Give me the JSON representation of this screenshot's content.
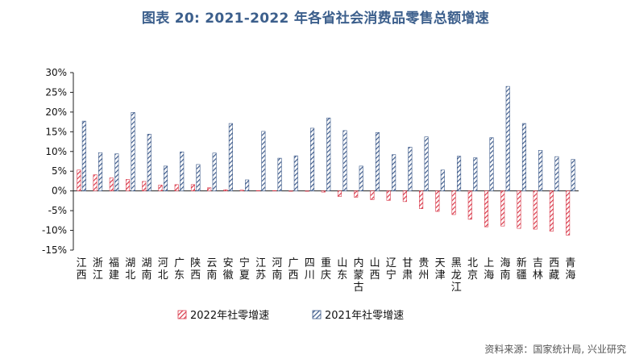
{
  "title": "图表 20: 2021-2022 年各省社会消费品零售总额增速",
  "source": "资料来源：国家统计局, 兴业研究",
  "colors": {
    "series_2022": "#d9394a",
    "series_2021": "#3d5a8a",
    "title": "#3c5f8c"
  },
  "chart_data": {
    "type": "bar",
    "categories": [
      "江西",
      "浙江",
      "福建",
      "湖北",
      "湖南",
      "河北",
      "广东",
      "陕西",
      "云南",
      "安徽",
      "宁夏",
      "江苏",
      "河南",
      "广西",
      "四川",
      "重庆",
      "山东",
      "内蒙古",
      "山西",
      "辽宁",
      "甘肃",
      "贵州",
      "天津",
      "黑龙江",
      "北京",
      "上海",
      "海南",
      "新疆",
      "吉林",
      "西藏",
      "青海"
    ],
    "series": [
      {
        "name": "2022年社零增速",
        "pattern": "diagonal-hatch",
        "values": [
          5.3,
          4.1,
          3.3,
          2.9,
          2.4,
          1.5,
          1.6,
          1.6,
          0.8,
          0.3,
          0.2,
          0.1,
          0.1,
          0.0,
          -0.1,
          -0.3,
          -1.4,
          -1.6,
          -2.2,
          -2.4,
          -2.7,
          -4.5,
          -5.2,
          -6.0,
          -7.2,
          -9.1,
          -8.9,
          -9.5,
          -9.7,
          -10.2,
          -11.2
        ]
      },
      {
        "name": "2021年社零增速",
        "pattern": "diagonal-hatch",
        "values": [
          17.7,
          9.7,
          9.4,
          19.9,
          14.4,
          6.3,
          9.9,
          6.7,
          9.6,
          17.1,
          2.8,
          15.1,
          8.3,
          8.9,
          15.9,
          18.5,
          15.3,
          6.3,
          14.8,
          9.2,
          11.1,
          13.7,
          5.3,
          8.8,
          8.4,
          13.5,
          26.5,
          17.1,
          10.3,
          8.7,
          8.0
        ]
      }
    ],
    "yticks": [
      "30%",
      "25%",
      "20%",
      "15%",
      "10%",
      "5%",
      "0%",
      "-5%",
      "-10%",
      "-15%"
    ],
    "ylim": [
      -15,
      30
    ],
    "grid": false,
    "legend_position": "bottom"
  }
}
